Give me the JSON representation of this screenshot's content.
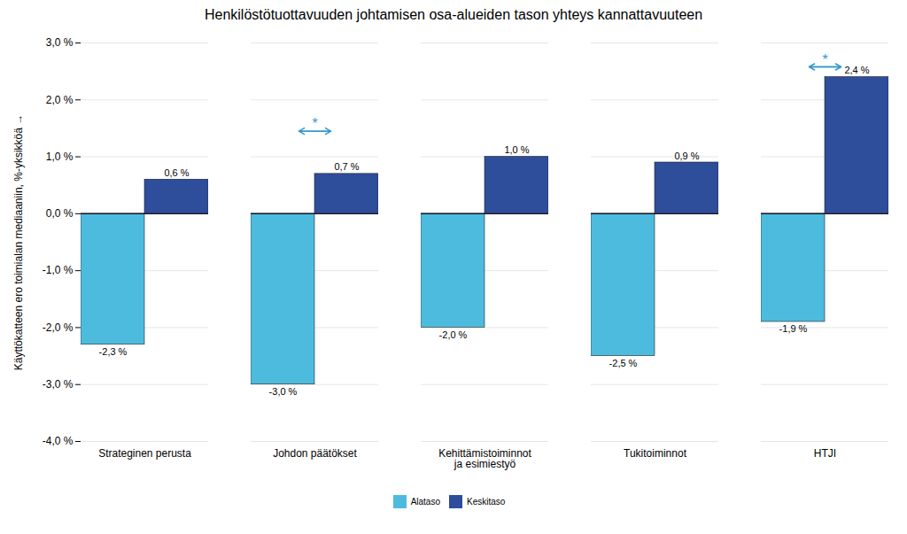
{
  "chart_data": {
    "type": "bar",
    "title": "Henkilöstötuottavuuden johtamisen osa-alueiden tason yhteys kannattavuuteen",
    "ylabel": "Käyttökatteen ero toimialan mediaaniin, %-yksikköä",
    "categories": [
      "Strateginen perusta",
      "Johdon päätökset",
      "Kehittämistoiminnot\nja esimiestyö",
      "Tukitoiminnot",
      "HTJI"
    ],
    "series": [
      {
        "name": "Alataso",
        "color": "#4DBBDE",
        "values": [
          -2.3,
          -3.0,
          -2.0,
          -2.5,
          -1.9
        ],
        "value_labels": [
          "-2,3 %",
          "-3,0 %",
          "-2,0 %",
          "-2,5 %",
          "-1,9 %"
        ]
      },
      {
        "name": "Keskitaso",
        "color": "#2E4D9B",
        "values": [
          0.6,
          0.7,
          1.0,
          0.9,
          2.4
        ],
        "value_labels": [
          "0,6 %",
          "0,7 %",
          "1,0 %",
          "0,9 %",
          "2,4 %"
        ]
      }
    ],
    "ylim": [
      -4.0,
      3.0
    ],
    "yticks": [
      {
        "value": -4.0,
        "label": "-4,0 %"
      },
      {
        "value": -3.0,
        "label": "-3,0 %"
      },
      {
        "value": -2.0,
        "label": "-2,0 %"
      },
      {
        "value": -1.0,
        "label": "-1,0 %"
      },
      {
        "value": 0.0,
        "label": "0,0 %"
      },
      {
        "value": 1.0,
        "label": "1,0 %"
      },
      {
        "value": 2.0,
        "label": "2,0 %"
      },
      {
        "value": 3.0,
        "label": "3,0 %"
      }
    ],
    "annotations": [
      {
        "text": "*",
        "x": "Johdon päätökset",
        "y": 1.45,
        "color": "#3399CC"
      },
      {
        "text": "*",
        "x": "HTJI",
        "y": 2.58,
        "color": "#3399CC"
      }
    ],
    "grid": true,
    "legend": "bottom",
    "data_labels": true
  }
}
